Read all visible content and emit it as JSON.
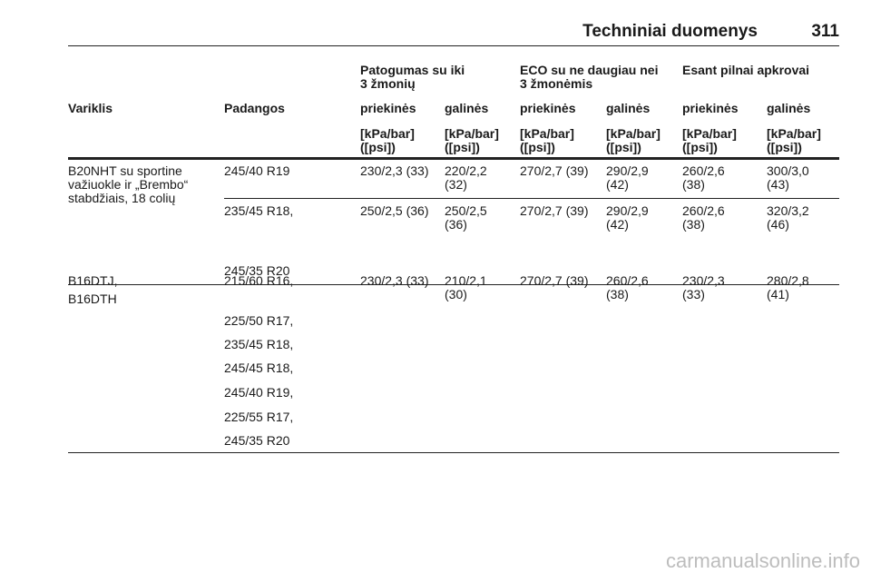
{
  "header": {
    "title": "Techniniai duomenys",
    "page": "311"
  },
  "table": {
    "groups": [
      "Patogumas su iki\n3 žmonių",
      "ECO su ne daugiau nei\n3 žmonėmis",
      "Esant pilnai apkrovai"
    ],
    "col_engine": "Variklis",
    "col_tires": "Padangos",
    "sub": [
      "priekinės",
      "galinės",
      "priekinės",
      "galinės",
      "priekinės",
      "galinės"
    ],
    "unit": "[kPa/bar]\n([psi])",
    "rows": [
      {
        "engine": "B20NHT su sportine\nvažiuokle ir „Brembo“\nstabdžiais, 18 colių",
        "groups": [
          {
            "tires": [
              "245/40 R19"
            ],
            "values": [
              "230/2,3 (33)",
              "220/2,2\n(32)",
              "270/2,7 (39)",
              "290/2,9\n(42)",
              "260/2,6\n(38)",
              "300/3,0\n(43)"
            ]
          },
          {
            "tires": [
              "235/45 R18,",
              "245/35 R20"
            ],
            "values": [
              "250/2,5 (36)",
              "250/2,5\n(36)",
              "270/2,7 (39)",
              "290/2,9\n(42)",
              "260/2,6\n(38)",
              "320/3,2\n(46)"
            ]
          }
        ]
      },
      {
        "engine": [
          "B16DTJ,",
          "B16DTH"
        ],
        "groups": [
          {
            "tires": [
              "215/60 R16,",
              "225/50 R17,",
              "235/45 R18,",
              "245/45 R18,",
              "245/40 R19,",
              "225/55 R17,",
              "245/35 R20"
            ],
            "values": [
              "230/2,3 (33)",
              "210/2,1\n(30)",
              "270/2,7 (39)",
              "260/2,6\n(38)",
              "230/2,3\n(33)",
              "280/2,8\n(41)"
            ]
          }
        ]
      }
    ]
  },
  "watermark": "carmanualsonline.info"
}
